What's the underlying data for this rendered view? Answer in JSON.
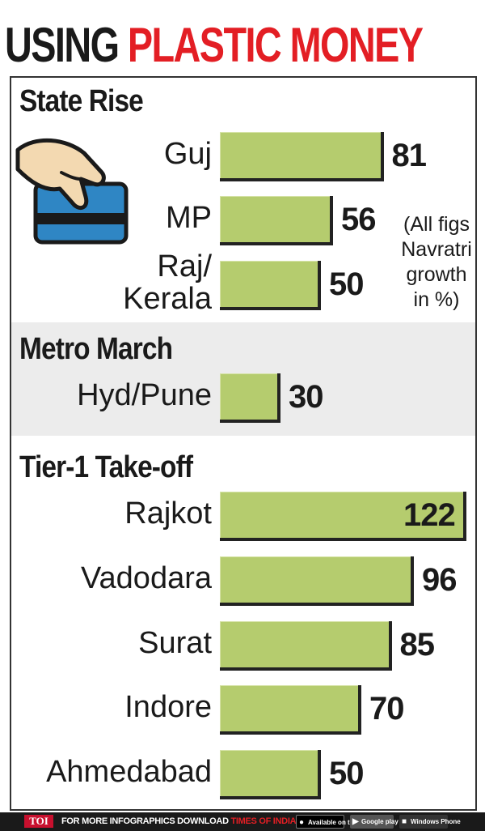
{
  "headline": {
    "part1": "USING",
    "part2": "PLASTIC MONEY"
  },
  "colors": {
    "bar": "#b5cc6e",
    "headline_red": "#e31e24",
    "band": "#ececec"
  },
  "note": [
    "(All figs",
    "Navratri",
    "growth",
    "in %)"
  ],
  "icons": [
    "hand-holding-card-icon"
  ],
  "chart_data": [
    {
      "type": "bar",
      "orientation": "horizontal",
      "title": "State Rise",
      "categories": [
        "Guj",
        "MP",
        "Raj/ Kerala"
      ],
      "category_lines": [
        [
          "Guj"
        ],
        [
          "MP"
        ],
        [
          "Raj/",
          "Kerala"
        ]
      ],
      "values": [
        81,
        56,
        50
      ],
      "value_labels": [
        "81",
        "56",
        "50"
      ]
    },
    {
      "type": "bar",
      "orientation": "horizontal",
      "title": "Metro March",
      "categories": [
        "Hyd/Pune"
      ],
      "category_lines": [
        [
          "Hyd/Pune"
        ]
      ],
      "values": [
        30
      ],
      "value_labels": [
        "30"
      ]
    },
    {
      "type": "bar",
      "orientation": "horizontal",
      "title": "Tier-1 Take-off",
      "categories": [
        "Rajkot",
        "Vadodara",
        "Surat",
        "Indore",
        "Ahmedabad"
      ],
      "category_lines": [
        [
          "Rajkot"
        ],
        [
          "Vadodara"
        ],
        [
          "Surat"
        ],
        [
          "Indore"
        ],
        [
          "Ahmedabad"
        ]
      ],
      "values": [
        122,
        96,
        85,
        70,
        50
      ],
      "value_labels": [
        "122",
        "96",
        "85",
        "70",
        "50"
      ]
    }
  ],
  "footer": {
    "logo": "TOI",
    "promo_prefix": "FOR MORE  INFOGRAPHICS DOWNLOAD ",
    "promo_brand": "TIMES OF INDIA APP",
    "badge_appstore": "Available on the App Store",
    "badge_googleplay": "Google play",
    "badge_windows": "Windows Phone"
  }
}
